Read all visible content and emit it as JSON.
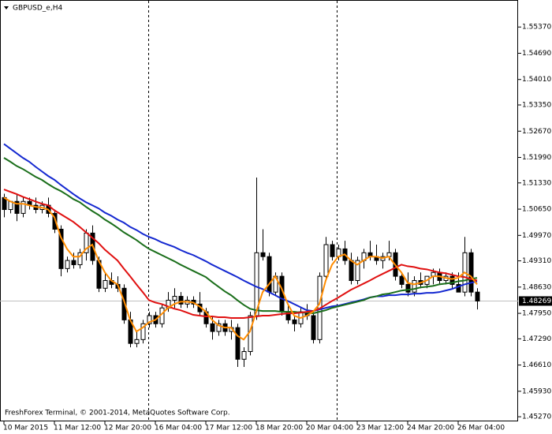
{
  "chart_data": {
    "type": "candlestick",
    "title": "GBPUSD_e,H4",
    "footer": "FreshForex Terminal, © 2001-2014, MetaQuotes Software Corp.",
    "categories": [
      "10 Mar 2015",
      null,
      null,
      null,
      null,
      null,
      null,
      null,
      "11 Mar 12:00",
      null,
      null,
      null,
      null,
      null,
      null,
      null,
      "12 Mar 20:00",
      null,
      null,
      null,
      null,
      null,
      null,
      null,
      "16 Mar 04:00",
      null,
      null,
      null,
      null,
      null,
      null,
      null,
      "17 Mar 12:00",
      null,
      null,
      null,
      null,
      null,
      null,
      null,
      "18 Mar 20:00",
      null,
      null,
      null,
      null,
      null,
      null,
      null,
      "20 Mar 04:00",
      null,
      null,
      null,
      null,
      null,
      null,
      null,
      "23 Mar 12:00",
      null,
      null,
      null,
      null,
      null,
      null,
      null,
      "24 Mar 20:00",
      null,
      null,
      null,
      null,
      null,
      null,
      null,
      "26 Mar 04:00",
      null,
      null,
      null
    ],
    "open": [
      1.5095,
      1.5064,
      1.5085,
      1.5054,
      1.5085,
      1.5075,
      1.5064,
      1.5075,
      1.5054,
      1.5013,
      1.4911,
      1.4932,
      1.4921,
      1.4952,
      1.5003,
      1.4932,
      1.486,
      1.488,
      1.487,
      1.486,
      1.4778,
      1.4717,
      1.4727,
      1.4768,
      1.4789,
      1.4768,
      1.4809,
      1.4829,
      1.4839,
      1.4819,
      1.4829,
      1.4819,
      1.4799,
      1.4768,
      1.4748,
      1.4768,
      1.4748,
      1.4758,
      1.4676,
      1.4696,
      1.4789,
      1.4952,
      1.4942,
      1.485,
      1.4891,
      1.4799,
      1.4778,
      1.4768,
      1.4799,
      1.4789,
      1.4727,
      1.4891,
      1.4973,
      1.4942,
      1.4962,
      1.4932,
      1.488,
      1.4932,
      1.4952,
      1.4942,
      1.4932,
      1.4942,
      1.4952,
      1.4891,
      1.487,
      1.485,
      1.488,
      1.487,
      1.4891,
      1.4901,
      1.488,
      1.4891,
      1.487,
      1.485,
      1.4952,
      1.485
    ],
    "high": [
      1.5105,
      1.5085,
      1.5105,
      1.5095,
      1.5095,
      1.5095,
      1.5085,
      1.5095,
      1.5064,
      1.5023,
      1.4942,
      1.4952,
      1.4962,
      1.5013,
      1.5023,
      1.4942,
      1.4901,
      1.4901,
      1.4891,
      1.487,
      1.4799,
      1.4748,
      1.4778,
      1.4799,
      1.4799,
      1.4819,
      1.485,
      1.486,
      1.485,
      1.4839,
      1.4839,
      1.485,
      1.4809,
      1.4789,
      1.4778,
      1.4778,
      1.4778,
      1.4768,
      1.4707,
      1.4799,
      1.5147,
      1.5013,
      1.4952,
      1.4901,
      1.4901,
      1.4819,
      1.4789,
      1.4809,
      1.4819,
      1.4799,
      1.4901,
      1.4993,
      1.4983,
      1.4973,
      1.4983,
      1.4952,
      1.4942,
      1.4962,
      1.4983,
      1.4973,
      1.4952,
      1.4983,
      1.4962,
      1.4901,
      1.4901,
      1.4891,
      1.4901,
      1.4891,
      1.4911,
      1.4911,
      1.4901,
      1.4901,
      1.4901,
      1.4993,
      1.4962,
      1.486
    ],
    "low": [
      1.5044,
      1.5054,
      1.5034,
      1.5044,
      1.5064,
      1.5054,
      1.5054,
      1.5044,
      1.5003,
      1.4891,
      1.4901,
      1.4911,
      1.4911,
      1.4932,
      1.4921,
      1.485,
      1.485,
      1.486,
      1.485,
      1.4768,
      1.4707,
      1.4707,
      1.4717,
      1.4758,
      1.4758,
      1.4758,
      1.4799,
      1.4809,
      1.4809,
      1.4809,
      1.4809,
      1.4789,
      1.4758,
      1.4727,
      1.4737,
      1.4737,
      1.4727,
      1.4656,
      1.4656,
      1.4686,
      1.4778,
      1.4932,
      1.4839,
      1.4839,
      1.4789,
      1.4768,
      1.4748,
      1.4758,
      1.4778,
      1.4717,
      1.4717,
      1.488,
      1.4932,
      1.4932,
      1.4921,
      1.487,
      1.487,
      1.4911,
      1.4932,
      1.4921,
      1.4911,
      1.4932,
      1.488,
      1.486,
      1.4839,
      1.4839,
      1.486,
      1.486,
      1.487,
      1.487,
      1.487,
      1.486,
      1.485,
      1.4839,
      1.4839,
      1.4805
    ],
    "close": [
      1.5064,
      1.5085,
      1.5054,
      1.5085,
      1.5075,
      1.5064,
      1.5075,
      1.5054,
      1.5013,
      1.4911,
      1.4932,
      1.4921,
      1.4952,
      1.5003,
      1.4932,
      1.486,
      1.488,
      1.487,
      1.486,
      1.4778,
      1.4717,
      1.4727,
      1.4768,
      1.4789,
      1.4768,
      1.4809,
      1.4829,
      1.4839,
      1.4819,
      1.4829,
      1.4819,
      1.4799,
      1.4768,
      1.4748,
      1.4768,
      1.4748,
      1.4758,
      1.4676,
      1.4696,
      1.4789,
      1.4952,
      1.4942,
      1.485,
      1.4891,
      1.4799,
      1.4778,
      1.4768,
      1.4799,
      1.4789,
      1.4727,
      1.4891,
      1.4973,
      1.4942,
      1.4962,
      1.4932,
      1.488,
      1.4932,
      1.4952,
      1.4942,
      1.4932,
      1.4942,
      1.4952,
      1.4891,
      1.487,
      1.485,
      1.488,
      1.487,
      1.4891,
      1.4901,
      1.488,
      1.4891,
      1.487,
      1.485,
      1.4952,
      1.485,
      1.48269
    ],
    "up_color": "#ffffff",
    "down_color": "#000000",
    "series": [
      {
        "color": "#1428d0",
        "values": [
          1.5234,
          1.5222,
          1.521,
          1.5198,
          1.5188,
          1.5175,
          1.5163,
          1.5151,
          1.5141,
          1.5128,
          1.5116,
          1.5104,
          1.5093,
          1.5083,
          1.5075,
          1.5067,
          1.5056,
          1.5048,
          1.5038,
          1.503,
          1.5019,
          1.5011,
          1.5001,
          1.4993,
          1.4987,
          1.4979,
          1.4973,
          1.4967,
          1.4959,
          1.4952,
          1.4946,
          1.4938,
          1.493,
          1.4921,
          1.4913,
          1.4905,
          1.4897,
          1.4889,
          1.488,
          1.4872,
          1.4864,
          1.4858,
          1.485,
          1.4842,
          1.4833,
          1.4827,
          1.4819,
          1.4811,
          1.4803,
          1.4801,
          1.4805,
          1.4809,
          1.4813,
          1.4815,
          1.4819,
          1.4823,
          1.4827,
          1.4831,
          1.4836,
          1.4839,
          1.4839,
          1.4842,
          1.4842,
          1.4844,
          1.4844,
          1.4846,
          1.4846,
          1.4848,
          1.4848,
          1.485,
          1.4854,
          1.4858,
          1.4864,
          1.487,
          1.4874,
          1.4878
        ]
      },
      {
        "color": "#1a6e1a",
        "values": [
          1.5198,
          1.5188,
          1.5177,
          1.5169,
          1.5159,
          1.5149,
          1.5141,
          1.513,
          1.512,
          1.5112,
          1.5102,
          1.5091,
          1.5083,
          1.5071,
          1.506,
          1.505,
          1.5038,
          1.5028,
          1.5017,
          1.5005,
          1.4995,
          1.4985,
          1.4973,
          1.4962,
          1.4954,
          1.4946,
          1.4938,
          1.493,
          1.4921,
          1.4913,
          1.4905,
          1.4897,
          1.4889,
          1.4876,
          1.4864,
          1.4852,
          1.4842,
          1.4829,
          1.4817,
          1.4807,
          1.4803,
          1.4801,
          1.4801,
          1.4801,
          1.4799,
          1.4799,
          1.4799,
          1.4797,
          1.4797,
          1.4795,
          1.4799,
          1.4803,
          1.4809,
          1.4813,
          1.4817,
          1.4821,
          1.4825,
          1.4829,
          1.4836,
          1.4839,
          1.4844,
          1.4846,
          1.485,
          1.4854,
          1.4856,
          1.4858,
          1.4862,
          1.4864,
          1.4866,
          1.487,
          1.4872,
          1.4874,
          1.4878,
          1.488,
          1.4884,
          1.4887
        ]
      },
      {
        "color": "#e01010",
        "values": [
          1.5116,
          1.511,
          1.5104,
          1.5097,
          1.5091,
          1.5085,
          1.5079,
          1.5075,
          1.5062,
          1.5052,
          1.5042,
          1.5032,
          1.5019,
          1.5005,
          1.4991,
          1.4977,
          1.496,
          1.4946,
          1.4932,
          1.4911,
          1.4891,
          1.487,
          1.485,
          1.4829,
          1.4823,
          1.4819,
          1.4813,
          1.4807,
          1.4803,
          1.4797,
          1.4791,
          1.4789,
          1.4787,
          1.4787,
          1.4785,
          1.4785,
          1.4783,
          1.4783,
          1.4783,
          1.4785,
          1.4787,
          1.4789,
          1.4789,
          1.4791,
          1.4793,
          1.4795,
          1.4795,
          1.4797,
          1.4799,
          1.4801,
          1.4807,
          1.4817,
          1.4827,
          1.4836,
          1.4846,
          1.4856,
          1.4864,
          1.4872,
          1.488,
          1.4889,
          1.4897,
          1.4905,
          1.4913,
          1.4921,
          1.4917,
          1.4915,
          1.4911,
          1.4909,
          1.4905,
          1.4901,
          1.4899,
          1.4895,
          1.4891,
          1.4889,
          1.4884,
          1.488
        ]
      },
      {
        "color": "#ff8c00",
        "values": [
          1.5095,
          1.5085,
          1.5079,
          1.5079,
          1.5075,
          1.5071,
          1.5069,
          1.5064,
          1.5044,
          1.4993,
          1.4962,
          1.4942,
          1.4942,
          1.4962,
          1.4973,
          1.4932,
          1.4901,
          1.488,
          1.487,
          1.4829,
          1.4778,
          1.4748,
          1.4758,
          1.4772,
          1.4778,
          1.4793,
          1.4809,
          1.4819,
          1.4825,
          1.4825,
          1.4823,
          1.4813,
          1.4799,
          1.4778,
          1.4764,
          1.4758,
          1.4758,
          1.4737,
          1.4727,
          1.4748,
          1.4799,
          1.485,
          1.487,
          1.4891,
          1.486,
          1.4819,
          1.4789,
          1.4783,
          1.4789,
          1.4799,
          1.4819,
          1.488,
          1.4921,
          1.4942,
          1.4948,
          1.4932,
          1.4921,
          1.4932,
          1.4942,
          1.4942,
          1.4938,
          1.4942,
          1.4921,
          1.4901,
          1.4874,
          1.487,
          1.4874,
          1.488,
          1.4891,
          1.4891,
          1.4887,
          1.4884,
          1.4887,
          1.4901,
          1.4891,
          1.487
        ]
      }
    ],
    "ylim": [
      1.4515,
      1.5607
    ],
    "yticks": [
      {
        "value": 1.5537,
        "label": "1.55370"
      },
      {
        "value": 1.5469,
        "label": "1.54690"
      },
      {
        "value": 1.5401,
        "label": "1.54010"
      },
      {
        "value": 1.5335,
        "label": "1.53350"
      },
      {
        "value": 1.5267,
        "label": "1.52670"
      },
      {
        "value": 1.5199,
        "label": "1.51990"
      },
      {
        "value": 1.5133,
        "label": "1.51330"
      },
      {
        "value": 1.5065,
        "label": "1.50650"
      },
      {
        "value": 1.4997,
        "label": "1.49970"
      },
      {
        "value": 1.4931,
        "label": "1.49310"
      },
      {
        "value": 1.4863,
        "label": "1.48630"
      },
      {
        "value": 1.4795,
        "label": "1.47950"
      },
      {
        "value": 1.4729,
        "label": "1.47290"
      },
      {
        "value": 1.4661,
        "label": "1.46610"
      },
      {
        "value": 1.4593,
        "label": "1.45930"
      },
      {
        "value": 1.4527,
        "label": "1.45270"
      }
    ],
    "current_price": {
      "value": 1.48269,
      "label": "1.48269"
    },
    "grid": false
  }
}
